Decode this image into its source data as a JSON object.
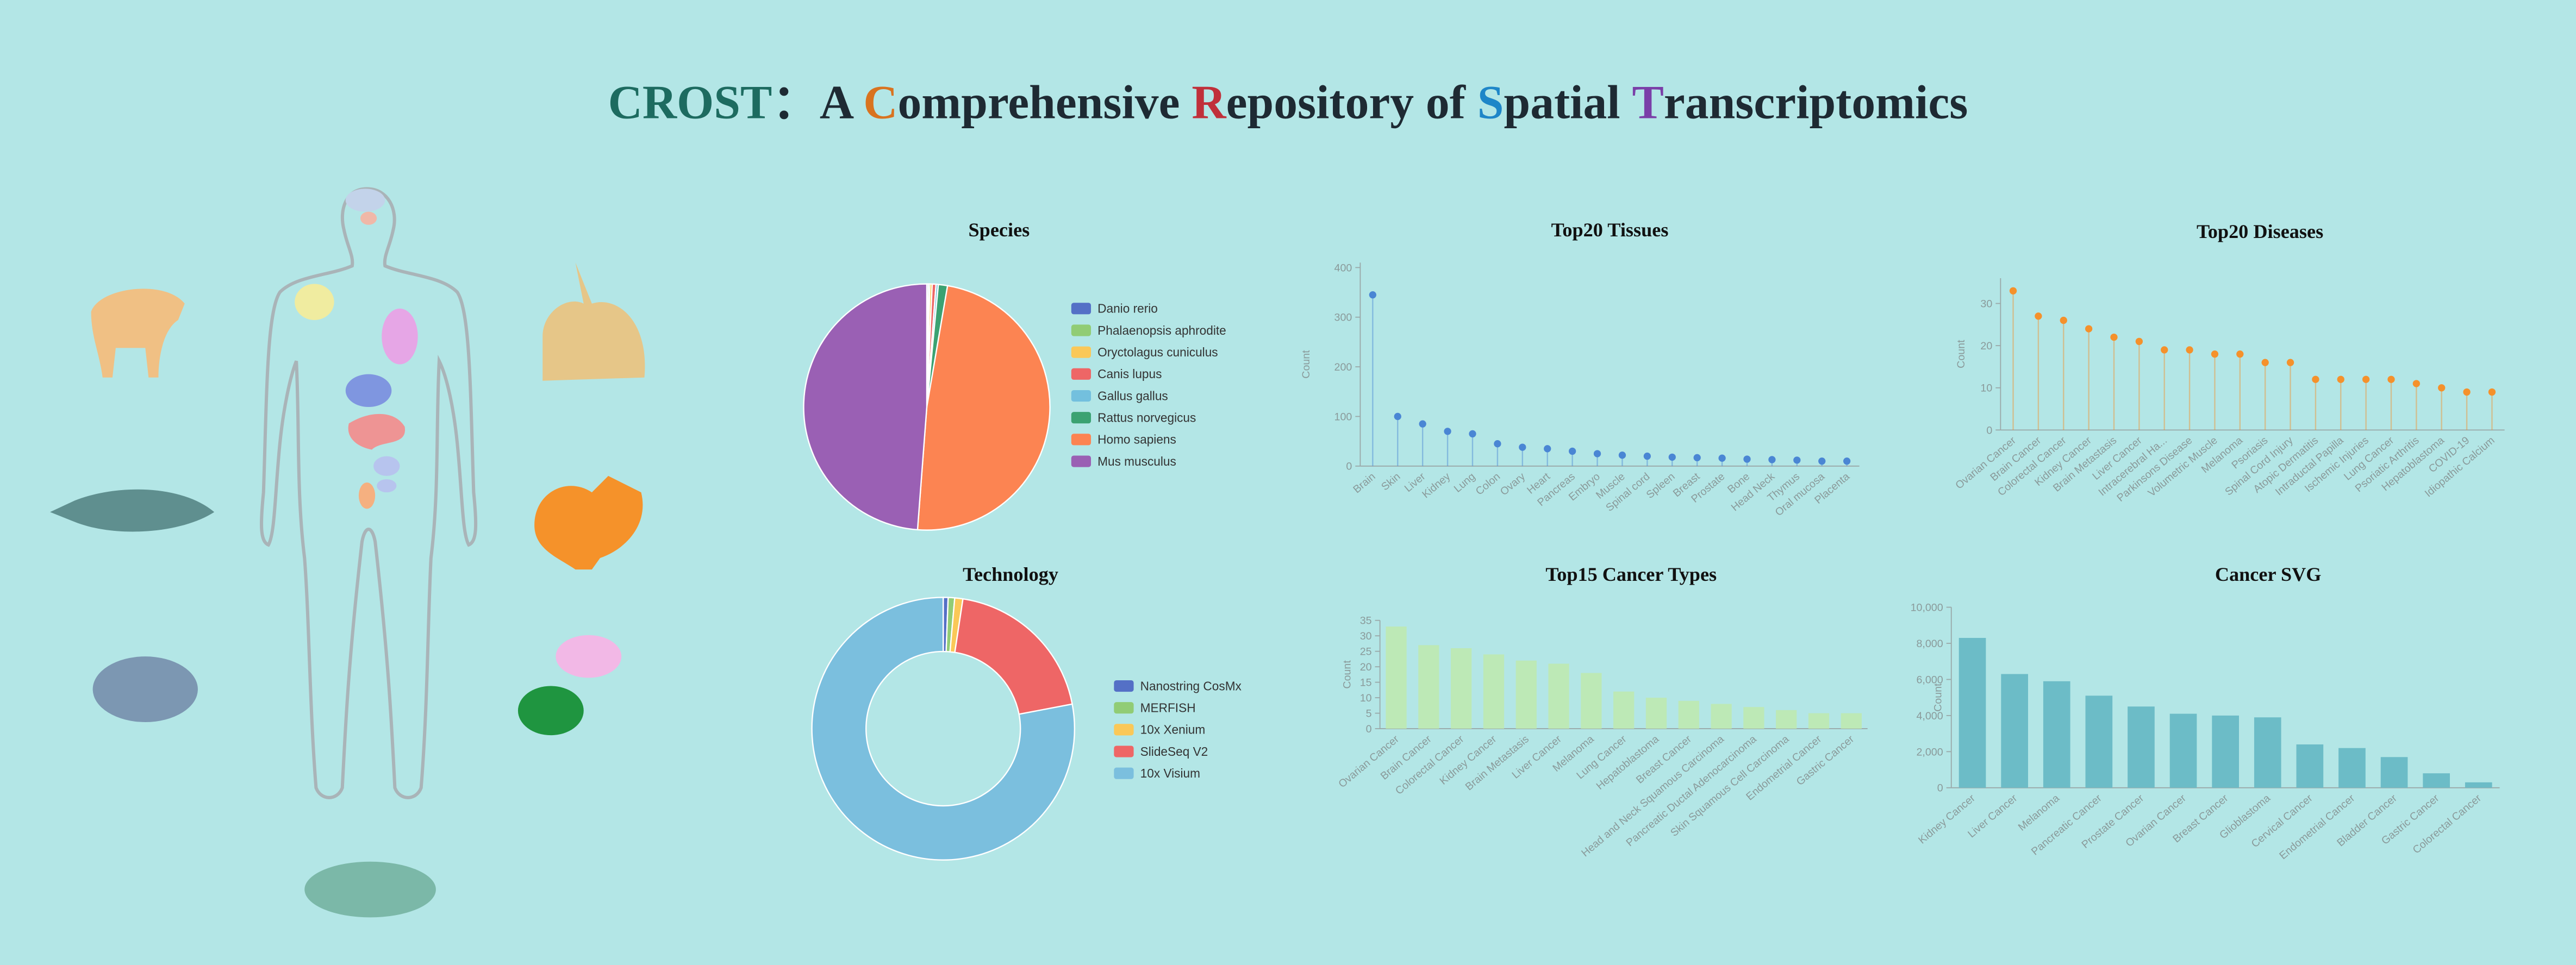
{
  "header": {
    "title": [
      {
        "text": "CROST",
        "color": "#1d6b60"
      },
      {
        "text": "：A ",
        "color": "#1e2a33"
      },
      {
        "text": "C",
        "color": "#d9731f"
      },
      {
        "text": "omprehensive ",
        "color": "#1e2a33"
      },
      {
        "text": "R",
        "color": "#c0303a"
      },
      {
        "text": "epository of ",
        "color": "#1e2a33"
      },
      {
        "text": "S",
        "color": "#1e86c8"
      },
      {
        "text": "patial ",
        "color": "#1e2a33"
      },
      {
        "text": "T",
        "color": "#7a3fa8"
      },
      {
        "text": "ranscriptomics",
        "color": "#1e2a33"
      }
    ]
  },
  "chart_data": [
    {
      "type": "pie",
      "title": "Species",
      "categories": [
        "Danio rerio",
        "Phalaenopsis aphrodite",
        "Oryctolagus cuniculus",
        "Canis lupus",
        "Gallus gallus",
        "Rattus norvegicus",
        "Homo sapiens",
        "Mus musculus"
      ],
      "values": [
        0.2,
        0.2,
        0.3,
        0.5,
        0.3,
        1.2,
        48.5,
        48.8
      ],
      "colors": [
        "#5470c6",
        "#91cc75",
        "#fac858",
        "#ee6666",
        "#73c0de",
        "#3ba272",
        "#fc8452",
        "#9a60b4"
      ]
    },
    {
      "type": "lollipop",
      "title": "Top20 Tissues",
      "y_label": "Count",
      "categories": [
        "Brain",
        "Skin",
        "Liver",
        "Kidney",
        "Lung",
        "Colon",
        "Ovary",
        "Heart",
        "Pancreas",
        "Embryo",
        "Muscle",
        "Spinal cord",
        "Spleen",
        "Breast",
        "Prostate",
        "Bone",
        "Head Neck",
        "Thymus",
        "Oral mucosa",
        "Placenta"
      ],
      "values": [
        345,
        100,
        85,
        70,
        65,
        45,
        38,
        35,
        30,
        25,
        22,
        20,
        18,
        17,
        16,
        14,
        13,
        12,
        10,
        10
      ],
      "color": "#4a86d4",
      "ylim": [
        0,
        410
      ],
      "yticks": [
        0,
        100,
        200,
        300,
        400
      ]
    },
    {
      "type": "lollipop",
      "title": "Top20 Diseases",
      "y_label": "Count",
      "categories": [
        "Ovarian Cancer",
        "Brain Cancer",
        "Colorectal Cancer",
        "Kidney Cancer",
        "Brain Metastasis",
        "Liver Cancer",
        "Intracerebral Ha...",
        "Parkinsons Disease",
        "Volumetric Muscle",
        "Melanoma",
        "Psoriasis",
        "Spinal Cord Injury",
        "Atopic Dermatitis",
        "Intraductal Papilla",
        "Ischemic Injuries",
        "Lung Cancer",
        "Psoriatic Arthritis",
        "Hepatoblastoma",
        "COVID-19",
        "Idiopathic Calcium"
      ],
      "values": [
        33,
        27,
        26,
        24,
        22,
        21,
        19,
        19,
        18,
        18,
        16,
        16,
        12,
        12,
        12,
        12,
        11,
        10,
        9,
        9
      ],
      "color": "#f5912b",
      "ylim": [
        0,
        36
      ],
      "yticks": [
        0,
        10,
        20,
        30
      ]
    },
    {
      "type": "donut",
      "title": "Technology",
      "categories": [
        "Nanostring CosMx",
        "MERFISH",
        "10x Xenium",
        "SlideSeq V2",
        "10x Visium"
      ],
      "values": [
        0.6,
        0.8,
        1.0,
        19.6,
        78
      ],
      "colors": [
        "#5470c6",
        "#91cc75",
        "#fac858",
        "#ee6666",
        "#7bbfde"
      ]
    },
    {
      "type": "bar",
      "title": "Top15 Cancer Types",
      "y_label": "Count",
      "categories": [
        "Ovarian Cancer",
        "Brain Cancer",
        "Colorectal Cancer",
        "Kidney Cancer",
        "Brain Metastasis",
        "Liver Cancer",
        "Melanoma",
        "Lung Cancer",
        "Hepatoblastoma",
        "Breast Cancer",
        "Head and Neck Squamous Carcinoma",
        "Pancreatic Ductal Adenocarcinoma",
        "Skin Squamous Cell Carcinoma",
        "Endometrial Cancer",
        "Gastric Cancer"
      ],
      "values": [
        33,
        27,
        26,
        24,
        22,
        21,
        18,
        12,
        10,
        9,
        8,
        7,
        6,
        5,
        5
      ],
      "color": "#bde9b6",
      "ylim": [
        0,
        35
      ],
      "yticks": [
        0,
        5,
        10,
        15,
        20,
        25,
        30,
        35
      ]
    },
    {
      "type": "bar",
      "title": "Cancer SVG",
      "y_label": "Count",
      "categories": [
        "Kidney Cancer",
        "Liver Cancer",
        "Melanoma",
        "Pancreatic Cancer",
        "Prostate Cancer",
        "Ovarian Cancer",
        "Breast Cancer",
        "Glioblastoma",
        "Cervical Cancer",
        "Endometrial Cancer",
        "Bladder Cancer",
        "Gastric Cancer",
        "Colorectal Cancer"
      ],
      "values": [
        8300,
        6300,
        5900,
        5100,
        4500,
        4100,
        4000,
        3900,
        2400,
        2200,
        1700,
        800,
        300
      ],
      "color": "#6cbcc7",
      "ylim": [
        0,
        10000
      ],
      "yticks": [
        0,
        {
          "value": 2000,
          "label": "2,000"
        },
        {
          "value": 4000,
          "label": "4,000"
        },
        {
          "value": 6000,
          "label": "6,000"
        },
        {
          "value": 8000,
          "label": "8,000"
        },
        {
          "value": 10000,
          "label": "10,000"
        }
      ]
    }
  ]
}
